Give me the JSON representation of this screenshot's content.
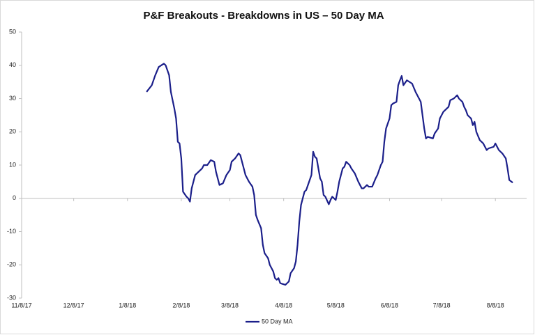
{
  "chart_data": {
    "type": "line",
    "title": "P&F Breakouts - Breakdowns in US – 50 Day MA",
    "x": [
      "1/19/18",
      "1/22/18",
      "1/24/18",
      "1/26/18",
      "1/29/18",
      "1/30/18",
      "2/1/18",
      "2/2/18",
      "2/4/18",
      "2/5/18",
      "2/6/18",
      "2/7/18",
      "2/8/18",
      "2/9/18",
      "2/11/18",
      "2/12/18",
      "2/13/18",
      "2/14/18",
      "2/16/18",
      "2/18/18",
      "2/20/18",
      "2/21/18",
      "2/23/18",
      "2/25/18",
      "2/27/18",
      "2/28/18",
      "3/2/18",
      "3/4/18",
      "3/6/18",
      "3/8/18",
      "3/9/18",
      "3/11/18",
      "3/13/18",
      "3/14/18",
      "3/16/18",
      "3/17/18",
      "3/19/18",
      "3/21/18",
      "3/22/18",
      "3/23/18",
      "3/24/18",
      "3/26/18",
      "3/27/18",
      "3/28/18",
      "3/30/18",
      "3/31/18",
      "4/2/18",
      "4/3/18",
      "4/4/18",
      "4/5/18",
      "4/6/18",
      "4/7/18",
      "4/9/18",
      "4/11/18",
      "4/12/18",
      "4/14/18",
      "4/15/18",
      "4/16/18",
      "4/17/18",
      "4/18/18",
      "4/20/18",
      "4/21/18",
      "4/22/18",
      "4/24/18",
      "4/25/18",
      "4/26/18",
      "4/27/18",
      "4/28/18",
      "4/29/18",
      "4/30/18",
      "5/1/18",
      "5/2/18",
      "5/4/18",
      "5/5/18",
      "5/6/18",
      "5/8/18",
      "5/9/18",
      "5/10/18",
      "5/12/18",
      "5/13/18",
      "5/14/18",
      "5/16/18",
      "5/17/18",
      "5/19/18",
      "5/21/18",
      "5/23/18",
      "5/24/18",
      "5/26/18",
      "5/27/18",
      "5/29/18",
      "5/31/18",
      "6/1/18",
      "6/3/18",
      "6/4/18",
      "6/5/18",
      "6/6/18",
      "6/8/18",
      "6/9/18",
      "6/10/18",
      "6/12/18",
      "6/13/18",
      "6/14/18",
      "6/15/18",
      "6/16/18",
      "6/18/18",
      "6/21/18",
      "6/23/18",
      "6/24/18",
      "6/26/18",
      "6/27/18",
      "6/28/18",
      "6/29/18",
      "6/30/18",
      "7/3/18",
      "7/4/18",
      "7/6/18",
      "7/7/18",
      "7/8/18",
      "7/9/18",
      "7/11/18",
      "7/12/18",
      "7/13/18",
      "7/15/18",
      "7/16/18",
      "7/17/18",
      "7/18/18",
      "7/20/18",
      "7/21/18",
      "7/22/18",
      "7/23/18",
      "7/25/18",
      "7/26/18",
      "7/27/18",
      "7/28/18",
      "7/30/18",
      "8/1/18",
      "8/2/18",
      "8/3/18",
      "8/4/18",
      "8/7/18",
      "8/8/18",
      "8/9/18",
      "8/10/18",
      "8/12/18",
      "8/14/18",
      "8/15/18",
      "8/16/18",
      "8/18/18"
    ],
    "series": [
      {
        "name": "50 Day MA",
        "color": "#1b1f8a",
        "values": [
          32,
          34,
          37,
          39.5,
          40.5,
          40,
          37,
          32,
          27,
          24,
          17,
          16.5,
          12,
          2,
          0.5,
          0,
          -1,
          3,
          7,
          8,
          9,
          10,
          10,
          11.5,
          11,
          8,
          4,
          4.5,
          7,
          8.5,
          11,
          12,
          13.5,
          13,
          9,
          7,
          5,
          3.5,
          1,
          -5,
          -6.5,
          -9,
          -14,
          -16.5,
          -18,
          -20,
          -22,
          -24,
          -24.5,
          -24,
          -25.5,
          -25.7,
          -26,
          -25,
          -22.5,
          -21,
          -19,
          -14,
          -7,
          -2,
          2,
          2.5,
          4,
          7,
          14,
          12.5,
          12,
          9,
          6,
          5,
          1,
          0.5,
          -1.8,
          -0.5,
          0.5,
          -0.5,
          2,
          5,
          9,
          9.5,
          11,
          10,
          9,
          7.5,
          5,
          3,
          3,
          4,
          3.5,
          3.5,
          6,
          7,
          10,
          11,
          17,
          21,
          24,
          28,
          28.5,
          29,
          34,
          35.5,
          36.8,
          34,
          35.5,
          34.5,
          32,
          31,
          29,
          25,
          21,
          18,
          18.5,
          18,
          19.5,
          21,
          24,
          25,
          26,
          27,
          27.5,
          29.5,
          30,
          30.5,
          31,
          30,
          29,
          27.5,
          26.5,
          25,
          24,
          22,
          23,
          20,
          17.5,
          16.5,
          15.5,
          14.5,
          15,
          15.5,
          16.5,
          15.5,
          14.5,
          13.5,
          12,
          9,
          5.5,
          4.7
        ]
      }
    ],
    "xlim": [
      "11/8/17",
      "8/26/18"
    ],
    "xticks": [
      "11/8/17",
      "12/8/17",
      "1/8/18",
      "2/8/18",
      "3/8/18",
      "4/8/18",
      "5/8/18",
      "6/8/18",
      "7/8/18",
      "8/8/18"
    ],
    "ylim": [
      -30,
      50
    ],
    "yticks": [
      -30,
      -20,
      -10,
      0,
      10,
      20,
      30,
      40,
      50
    ],
    "grid": false,
    "legend": "bottom"
  }
}
